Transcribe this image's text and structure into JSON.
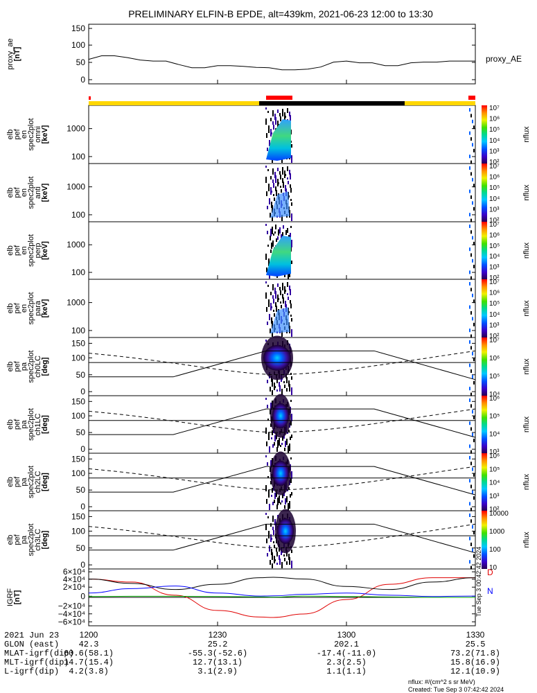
{
  "title": "PRELIMINARY ELFIN-B EPDE, alt=439km, 2021-06-23 12:00 to 13:30",
  "chart_data": [
    {
      "type": "line",
      "name": "proxy_ae",
      "ylabel": [
        "proxy_ae",
        "[nT]"
      ],
      "yticks": [
        "150",
        "100",
        "50",
        "0"
      ],
      "ylim": [
        -10,
        160
      ],
      "series_label": "proxy_AE",
      "x_minutes": [
        0,
        3,
        6,
        9,
        12,
        15,
        18,
        21,
        24,
        27,
        30,
        33,
        36,
        39,
        42,
        45,
        48,
        51,
        54,
        57,
        60,
        63,
        66,
        69,
        72,
        75,
        78,
        81,
        84,
        87,
        90
      ],
      "values": [
        60,
        70,
        70,
        65,
        58,
        55,
        55,
        45,
        36,
        36,
        42,
        42,
        40,
        37,
        36,
        30,
        30,
        32,
        38,
        52,
        55,
        50,
        50,
        42,
        42,
        50,
        52,
        52,
        55,
        55,
        55
      ]
    },
    {
      "type": "heatmap",
      "name": "elb_pef_en_spec2plot_omni",
      "ylabel": [
        "elb",
        "pef",
        "en",
        "spec2plot",
        "omni",
        "[keV]"
      ],
      "yticks": [
        "1000",
        "100"
      ],
      "colorbar": {
        "label": "nflux",
        "ticks": [
          "10⁷",
          "10⁶",
          "10⁵",
          "10⁴",
          "10³",
          "10²"
        ]
      }
    },
    {
      "type": "heatmap",
      "name": "elb_pef_en_spec2plot_anti",
      "ylabel": [
        "elb",
        "pef",
        "en",
        "spec2plot",
        "anti",
        "[keV]"
      ],
      "yticks": [
        "1000",
        "100"
      ],
      "colorbar": {
        "label": "nflux",
        "ticks": [
          "10⁷",
          "10⁶",
          "10⁵",
          "10⁴",
          "10³",
          "10²"
        ]
      }
    },
    {
      "type": "heatmap",
      "name": "elb_pef_en_spec2plot_perp",
      "ylabel": [
        "elb",
        "pef",
        "en",
        "spec2plot",
        "perp",
        "[keV]"
      ],
      "yticks": [
        "1000",
        "100"
      ],
      "colorbar": {
        "label": "nflux",
        "ticks": [
          "10⁷",
          "10⁶",
          "10⁵",
          "10⁴",
          "10³",
          "10²"
        ]
      }
    },
    {
      "type": "heatmap",
      "name": "elb_pef_en_spec2plot_para",
      "ylabel": [
        "elb",
        "pef",
        "en",
        "spec2plot",
        "para",
        "[keV]"
      ],
      "yticks": [
        "1000",
        "100"
      ],
      "colorbar": {
        "label": "nflux",
        "ticks": [
          "10⁷",
          "10⁶",
          "10⁵",
          "10⁴",
          "10³",
          "10²"
        ]
      }
    },
    {
      "type": "heatmap",
      "name": "elb_pef_pa_spec2plot_ch0LC",
      "ylabel": [
        "elb",
        "pef",
        "pa",
        "spec2plot",
        "ch0LC",
        "[deg]"
      ],
      "yticks": [
        "150",
        "100",
        "50",
        "0"
      ],
      "colorbar": {
        "label": "nflux",
        "ticks": [
          "10⁷",
          "10⁶",
          "10⁵",
          "10⁴"
        ]
      }
    },
    {
      "type": "heatmap",
      "name": "elb_pef_pa_spec2plot_ch1LC",
      "ylabel": [
        "elb",
        "pef",
        "pa",
        "spec2plot",
        "ch1LC",
        "[deg]"
      ],
      "yticks": [
        "150",
        "100",
        "50",
        "0"
      ],
      "colorbar": {
        "label": "nflux",
        "ticks": [
          "10⁶",
          "10⁵",
          "10⁴",
          "10³"
        ]
      }
    },
    {
      "type": "heatmap",
      "name": "elb_pef_pa_spec2plot_ch2LC",
      "ylabel": [
        "elb",
        "pef",
        "pa",
        "spec2plot",
        "ch2LC",
        "[deg]"
      ],
      "yticks": [
        "150",
        "100",
        "50",
        "0"
      ],
      "colorbar": {
        "label": "nflux",
        "ticks": [
          "10⁶",
          "10⁵",
          "10⁴",
          "10³",
          "10²"
        ]
      }
    },
    {
      "type": "heatmap",
      "name": "elb_pef_pa_spec2plot_ch3LC",
      "ylabel": [
        "elb",
        "pef",
        "pa",
        "spec2plot",
        "ch3LC",
        "[deg]"
      ],
      "yticks": [
        "150",
        "100",
        "50",
        "0"
      ],
      "colorbar": {
        "label": "nflux",
        "ticks": [
          "10000",
          "1000",
          "100",
          "10"
        ]
      }
    },
    {
      "type": "line",
      "name": "IGRF",
      "ylabel": [
        "IGRF",
        "[nT]"
      ],
      "yticks": [
        "6×10⁴",
        "4×10⁴",
        "2×10⁴",
        "0",
        "−2×10⁴",
        "−4×10⁴",
        "−6×10⁴"
      ],
      "ylim": [
        -65000,
        65000
      ],
      "x_minutes": [
        0,
        10,
        20,
        30,
        40,
        43,
        50,
        60,
        70,
        80,
        90
      ],
      "series": [
        {
          "name": "D",
          "color": "#e00000",
          "values": [
            42000,
            35000,
            5000,
            -30000,
            -45000,
            -46000,
            -38000,
            -5000,
            30000,
            45000,
            45000
          ]
        },
        {
          "name": "",
          "color": "#000000",
          "values": [
            42000,
            32000,
            18000,
            30000,
            45000,
            46000,
            42000,
            25000,
            18000,
            35000,
            45000
          ]
        },
        {
          "name": "N",
          "color": "#0000ff",
          "values": [
            10000,
            20000,
            26000,
            10000,
            3000,
            3500,
            7000,
            10000,
            5000,
            2000,
            3000
          ]
        },
        {
          "name": "",
          "color": "#00aa00",
          "values": [
            2000,
            2500,
            2500,
            2000,
            1000,
            500,
            3000,
            2000,
            1000,
            0,
            0
          ]
        }
      ]
    }
  ],
  "xaxis": {
    "ticks": [
      "1200",
      "1230",
      "1300",
      "1330"
    ],
    "rows": [
      {
        "label": "2021 Jun 23",
        "values": [
          "",
          "",
          "",
          ""
        ]
      },
      {
        "label": "GLON (east)",
        "values": [
          "42.3",
          "25.2",
          "202.1",
          "25.5"
        ]
      },
      {
        "label": "MLAT-igrf(dip)",
        "values": [
          "60.6(58.1)",
          "-55.3(-52.6)",
          "-17.4(-11.0)",
          "73.2(71.8)"
        ]
      },
      {
        "label": "MLT-igrf(dip)",
        "values": [
          "14.7(15.4)",
          "12.7(13.1)",
          "2.3(2.5)",
          "15.8(16.9)"
        ]
      },
      {
        "label": "L-igrf(dip)",
        "values": [
          "4.2(3.8)",
          "3.1(2.9)",
          "1.1(1.1)",
          "12.1(10.9)"
        ]
      }
    ]
  },
  "footer": {
    "units": "nflux: #/(cm^2 s sr MeV)",
    "created": "Created: Tue Sep  3 07:42:42 2024",
    "side_stamp": "Tue Sep  3 00:42:42 2024"
  },
  "colors": {
    "bar_yellow": "#ffd700",
    "bar_black": "#000000",
    "bar_red": "#ff0000"
  }
}
